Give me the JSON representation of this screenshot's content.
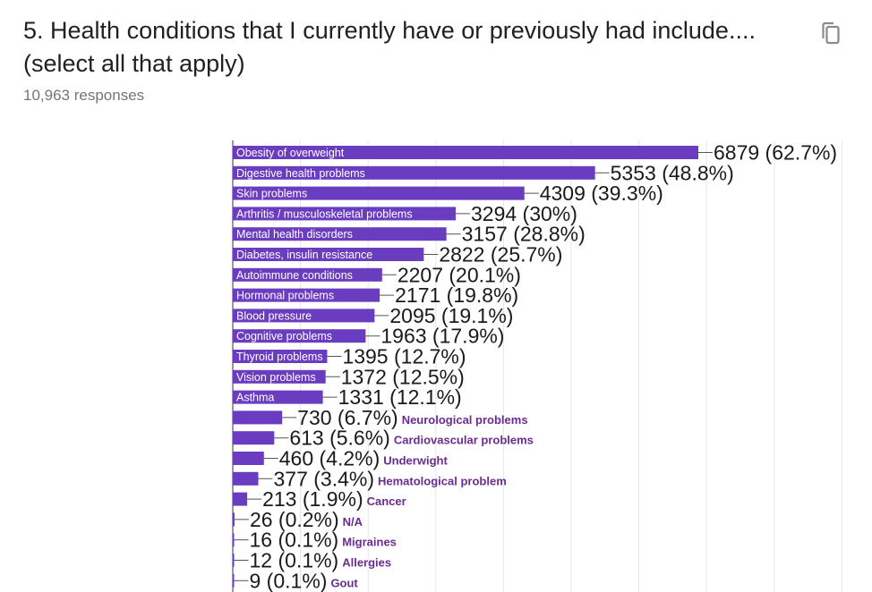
{
  "question": {
    "title": "5. Health conditions that I currently have or previously had include.... (select all that apply)",
    "responses": "10,963 responses"
  },
  "icons": {
    "copy": "copy-icon"
  },
  "colors": {
    "bar": "#6a3cc0",
    "grid": "#e6e6e6",
    "outside_label": "#6a2c91"
  },
  "chart_data": {
    "type": "bar",
    "orientation": "horizontal",
    "title": "5. Health conditions that I currently have or previously had include.... (select all that apply)",
    "subtitle": "10,963 responses",
    "xlabel": "",
    "ylabel": "",
    "xlim": [
      0,
      11000
    ],
    "grid": true,
    "categories": [
      "Obesity of overweight",
      "Digestive health problems",
      "Skin problems",
      "Arthritis / musculoskeletal problems",
      "Mental health disorders",
      "Diabetes, insulin resistance",
      "Autoimmune conditions",
      "Hormonal problems",
      "Blood pressure",
      "Cognitive problems",
      "Thyroid problems",
      "Vision problems",
      "Asthma",
      "Neurological problems",
      "Cardiovascular problems",
      "Underwight",
      "Hematological problem",
      "Cancer",
      "N/A",
      "Migraines",
      "Allergies",
      "Gout"
    ],
    "values": [
      6879,
      5353,
      4309,
      3294,
      3157,
      2822,
      2207,
      2171,
      2095,
      1963,
      1395,
      1372,
      1331,
      730,
      613,
      460,
      377,
      213,
      26,
      16,
      12,
      9
    ],
    "data_labels": [
      "6879 (62.7%)",
      "5353 (48.8%)",
      "4309 (39.3%)",
      "3294 (30%)",
      "3157 (28.8%)",
      "2822 (25.7%)",
      "2207 (20.1%)",
      "2171 (19.8%)",
      "2095 (19.1%)",
      "1963 (17.9%)",
      "1395 (12.7%)",
      "1372 (12.5%)",
      "1331 (12.1%)",
      "730 (6.7%)",
      "613 (5.6%)",
      "460 (4.2%)",
      "377 (3.4%)",
      "213 (1.9%)",
      "26 (0.2%)",
      "16 (0.1%)",
      "12 (0.1%)",
      "9 (0.1%)"
    ]
  }
}
